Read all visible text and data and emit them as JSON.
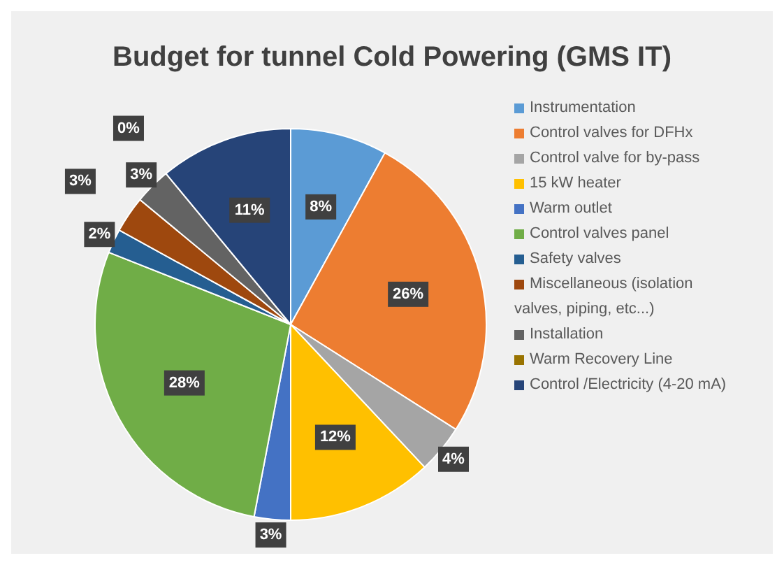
{
  "chart_data": {
    "type": "pie",
    "title": "Budget for tunnel Cold Powering (GMS IT)",
    "categories": [
      "Instrumentation",
      "Control valves for DFHx",
      "Control valve for by-pass",
      "15 kW heater",
      "Warm outlet",
      "Control valves panel",
      "Safety valves",
      "Miscellaneous (isolation valves, piping, etc...)",
      "Installation",
      "Warm Recovery Line",
      "Control /Electricity (4-20 mA)"
    ],
    "values": [
      8,
      26,
      4,
      12,
      3,
      28,
      2,
      3,
      3,
      0,
      11
    ],
    "colors": [
      "#5b9bd5",
      "#ed7d31",
      "#a5a5a5",
      "#ffc000",
      "#4472c4",
      "#70ad47",
      "#255e91",
      "#9e480e",
      "#636363",
      "#997300",
      "#264478"
    ],
    "value_labels": [
      "8%",
      "26%",
      "4%",
      "12%",
      "3%",
      "28%",
      "2%",
      "3%",
      "3%",
      "0%",
      "11%"
    ],
    "legend": "right"
  }
}
